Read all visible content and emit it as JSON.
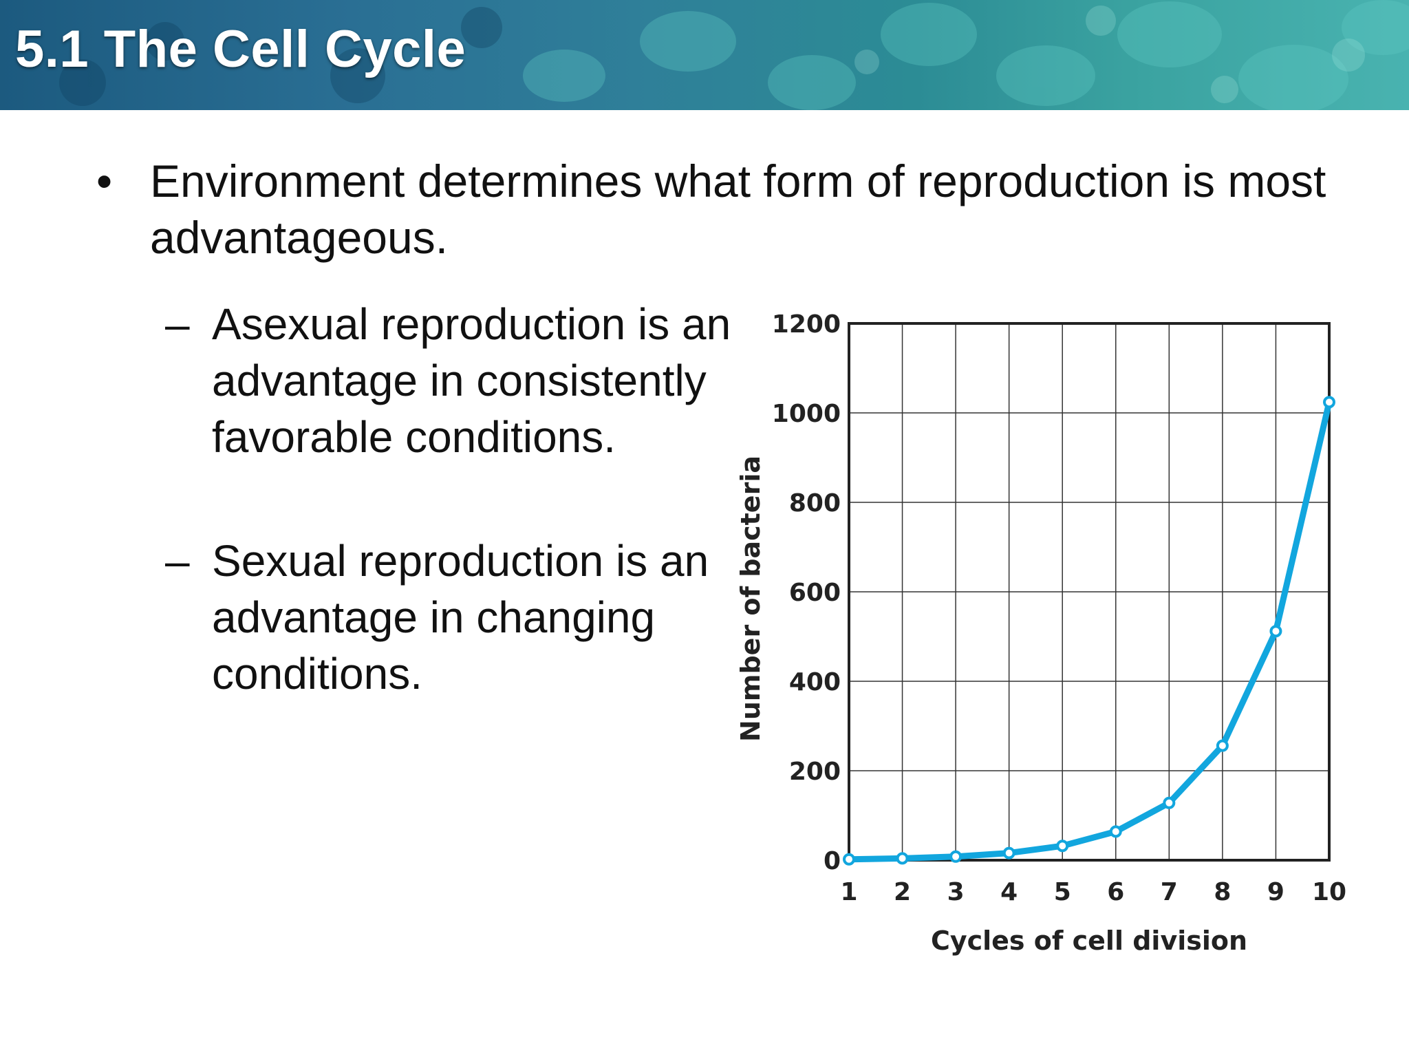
{
  "slide": {
    "title": "5.1 The Cell Cycle",
    "bullet": {
      "marker": "•",
      "text": "Environment determines what form of reproduction is most advantageous."
    },
    "subbullets": [
      {
        "marker": "–",
        "text": "Asexual reproduction is an advantage in consistently favorable conditions."
      },
      {
        "marker": "–",
        "text": "Sexual reproduction is an advantage in changing conditions."
      }
    ]
  },
  "colors": {
    "line": "#12a6de",
    "grid": "#333333",
    "header_text": "#ffffff"
  },
  "chart_data": {
    "type": "line",
    "title": "",
    "xlabel": "Cycles of cell division",
    "ylabel": "Number of bacteria",
    "x": [
      1,
      2,
      3,
      4,
      5,
      6,
      7,
      8,
      9,
      10
    ],
    "series": [
      {
        "values": [
          2,
          4,
          8,
          16,
          32,
          64,
          128,
          256,
          512,
          1024
        ]
      }
    ],
    "xlim": [
      1,
      10
    ],
    "ylim": [
      0,
      1200
    ],
    "yticks": [
      0,
      200,
      400,
      600,
      800,
      1000,
      1200
    ],
    "xticks": [
      1,
      2,
      3,
      4,
      5,
      6,
      7,
      8,
      9,
      10
    ],
    "grid": true,
    "legend": "none"
  }
}
